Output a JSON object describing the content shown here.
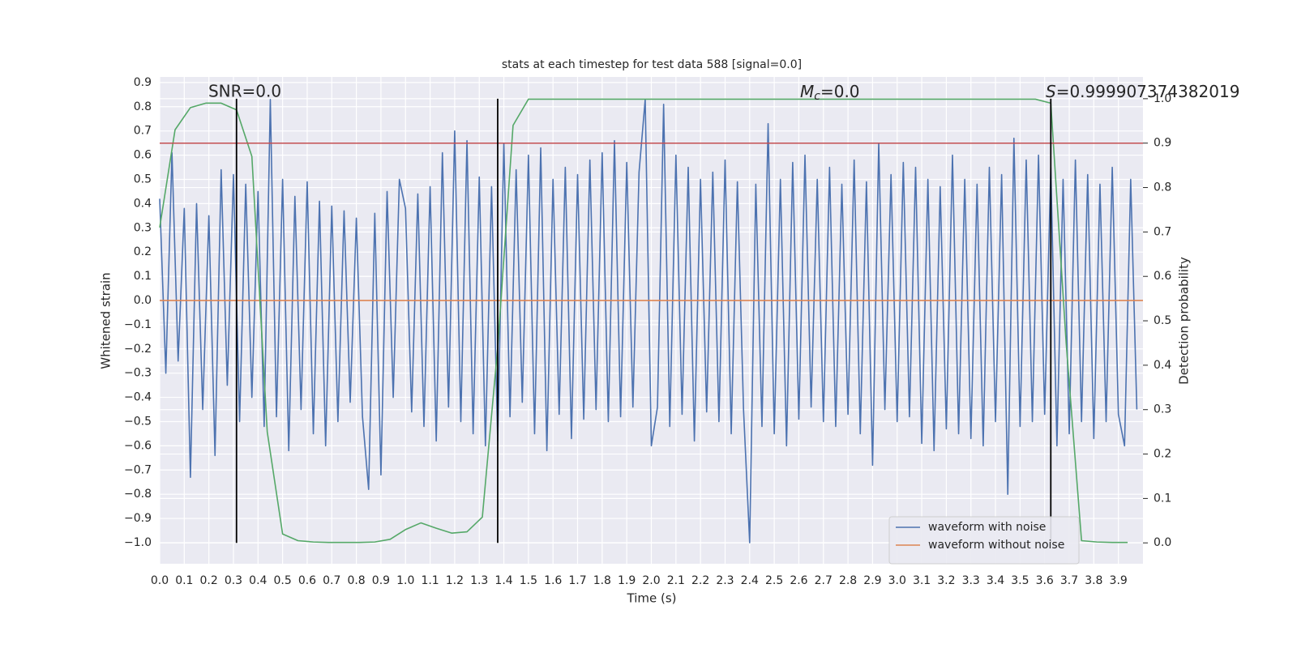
{
  "chart_data": {
    "type": "line",
    "title": "stats at each timestep for test data 588 [signal=0.0]",
    "xlabel": "Time (s)",
    "ylabel": "Whitened strain",
    "y2label": "Detection probability",
    "annotations": [
      {
        "text": "SNR=0.0"
      },
      {
        "symbol": "M",
        "subscript": "c",
        "text": "=0.0"
      },
      {
        "symbol": "S",
        "text": "=0.999907374382019"
      }
    ],
    "grid": true,
    "legend": "lower right",
    "xlim": [
      0,
      4.0
    ],
    "ylim": [
      -1.087,
      0.923
    ],
    "y2lim": [
      -0.047,
      1.049
    ],
    "xticks": [
      {
        "value": 0,
        "label": "0.0"
      },
      {
        "value": 0.1,
        "label": "0.1"
      },
      {
        "value": 0.2,
        "label": "0.2"
      },
      {
        "value": 0.3,
        "label": "0.3"
      },
      {
        "value": 0.4,
        "label": "0.4"
      },
      {
        "value": 0.5,
        "label": "0.5"
      },
      {
        "value": 0.6,
        "label": "0.6"
      },
      {
        "value": 0.7,
        "label": "0.7"
      },
      {
        "value": 0.8,
        "label": "0.8"
      },
      {
        "value": 0.9,
        "label": "0.9"
      },
      {
        "value": 1,
        "label": "1.0"
      },
      {
        "value": 1.1,
        "label": "1.1"
      },
      {
        "value": 1.2,
        "label": "1.2"
      },
      {
        "value": 1.3,
        "label": "1.3"
      },
      {
        "value": 1.4,
        "label": "1.4"
      },
      {
        "value": 1.5,
        "label": "1.5"
      },
      {
        "value": 1.6,
        "label": "1.6"
      },
      {
        "value": 1.7,
        "label": "1.7"
      },
      {
        "value": 1.8,
        "label": "1.8"
      },
      {
        "value": 1.9,
        "label": "1.9"
      },
      {
        "value": 2,
        "label": "2.0"
      },
      {
        "value": 2.1,
        "label": "2.1"
      },
      {
        "value": 2.2,
        "label": "2.2"
      },
      {
        "value": 2.3,
        "label": "2.3"
      },
      {
        "value": 2.4,
        "label": "2.4"
      },
      {
        "value": 2.5,
        "label": "2.5"
      },
      {
        "value": 2.6,
        "label": "2.6"
      },
      {
        "value": 2.7,
        "label": "2.7"
      },
      {
        "value": 2.8,
        "label": "2.8"
      },
      {
        "value": 2.9,
        "label": "2.9"
      },
      {
        "value": 3,
        "label": "3.0"
      },
      {
        "value": 3.1,
        "label": "3.1"
      },
      {
        "value": 3.2,
        "label": "3.2"
      },
      {
        "value": 3.3,
        "label": "3.3"
      },
      {
        "value": 3.4,
        "label": "3.4"
      },
      {
        "value": 3.5,
        "label": "3.5"
      },
      {
        "value": 3.6,
        "label": "3.6"
      },
      {
        "value": 3.7,
        "label": "3.7"
      },
      {
        "value": 3.8,
        "label": "3.8"
      },
      {
        "value": 3.9,
        "label": "3.9"
      }
    ],
    "yticks": [
      {
        "value": -1,
        "label": "−1.0"
      },
      {
        "value": -0.9,
        "label": "−0.9"
      },
      {
        "value": -0.8,
        "label": "−0.8"
      },
      {
        "value": -0.7,
        "label": "−0.7"
      },
      {
        "value": -0.6,
        "label": "−0.6"
      },
      {
        "value": -0.5,
        "label": "−0.5"
      },
      {
        "value": -0.4,
        "label": "−0.4"
      },
      {
        "value": -0.3,
        "label": "−0.3"
      },
      {
        "value": -0.2,
        "label": "−0.2"
      },
      {
        "value": -0.1,
        "label": "−0.1"
      },
      {
        "value": 0,
        "label": "0.0"
      },
      {
        "value": 0.1,
        "label": "0.1"
      },
      {
        "value": 0.2,
        "label": "0.2"
      },
      {
        "value": 0.3,
        "label": "0.3"
      },
      {
        "value": 0.4,
        "label": "0.4"
      },
      {
        "value": 0.5,
        "label": "0.5"
      },
      {
        "value": 0.6,
        "label": "0.6"
      },
      {
        "value": 0.7,
        "label": "0.7"
      },
      {
        "value": 0.8,
        "label": "0.8"
      },
      {
        "value": 0.9,
        "label": "0.9"
      }
    ],
    "y2ticks": [
      {
        "value": 0,
        "label": "0.0"
      },
      {
        "value": 0.1,
        "label": "0.1"
      },
      {
        "value": 0.2,
        "label": "0.2"
      },
      {
        "value": 0.3,
        "label": "0.3"
      },
      {
        "value": 0.4,
        "label": "0.4"
      },
      {
        "value": 0.5,
        "label": "0.5"
      },
      {
        "value": 0.6,
        "label": "0.6"
      },
      {
        "value": 0.7,
        "label": "0.7"
      },
      {
        "value": 0.8,
        "label": "0.8"
      },
      {
        "value": 0.9,
        "label": "0.9"
      },
      {
        "value": 1,
        "label": "1.0"
      }
    ],
    "series": [
      {
        "name": "waveform with noise",
        "color": "#4c72b0",
        "x": [
          0,
          0.025,
          0.05,
          0.075,
          0.1,
          0.125,
          0.15,
          0.175,
          0.2,
          0.225,
          0.25,
          0.275,
          0.3,
          0.325,
          0.35,
          0.375,
          0.4,
          0.425,
          0.45,
          0.475,
          0.5,
          0.525,
          0.55,
          0.575,
          0.6,
          0.625,
          0.65,
          0.675,
          0.7,
          0.725,
          0.75,
          0.775,
          0.8,
          0.825,
          0.85,
          0.875,
          0.9,
          0.925,
          0.95,
          0.975,
          1.0,
          1.025,
          1.05,
          1.075,
          1.1,
          1.125,
          1.15,
          1.175,
          1.2,
          1.225,
          1.25,
          1.275,
          1.3,
          1.325,
          1.35,
          1.375,
          1.4,
          1.425,
          1.45,
          1.475,
          1.5,
          1.525,
          1.55,
          1.575,
          1.6,
          1.625,
          1.65,
          1.675,
          1.7,
          1.725,
          1.75,
          1.775,
          1.8,
          1.825,
          1.85,
          1.875,
          1.9,
          1.925,
          1.95,
          1.975,
          2.0,
          2.025,
          2.05,
          2.075,
          2.1,
          2.125,
          2.15,
          2.175,
          2.2,
          2.225,
          2.25,
          2.275,
          2.3,
          2.325,
          2.35,
          2.375,
          2.4,
          2.425,
          2.45,
          2.475,
          2.5,
          2.525,
          2.55,
          2.575,
          2.6,
          2.625,
          2.65,
          2.675,
          2.7,
          2.725,
          2.75,
          2.775,
          2.8,
          2.825,
          2.85,
          2.875,
          2.9,
          2.925,
          2.95,
          2.975,
          3.0,
          3.025,
          3.05,
          3.075,
          3.1,
          3.125,
          3.15,
          3.175,
          3.2,
          3.225,
          3.25,
          3.275,
          3.3,
          3.325,
          3.35,
          3.375,
          3.4,
          3.425,
          3.45,
          3.475,
          3.5,
          3.525,
          3.55,
          3.575,
          3.6,
          3.625,
          3.65,
          3.675,
          3.7,
          3.725,
          3.75,
          3.775,
          3.8,
          3.825,
          3.85,
          3.875,
          3.9,
          3.925,
          3.95,
          3.975
        ],
        "values": [
          0.42,
          -0.3,
          0.61,
          -0.25,
          0.38,
          -0.73,
          0.4,
          -0.45,
          0.35,
          -0.64,
          0.54,
          -0.35,
          0.52,
          -0.5,
          0.48,
          -0.4,
          0.45,
          -0.52,
          0.83,
          -0.48,
          0.5,
          -0.62,
          0.43,
          -0.45,
          0.49,
          -0.55,
          0.41,
          -0.6,
          0.39,
          -0.5,
          0.37,
          -0.42,
          0.34,
          -0.48,
          -0.78,
          0.36,
          -0.72,
          0.45,
          -0.4,
          0.5,
          0.38,
          -0.46,
          0.44,
          -0.52,
          0.47,
          -0.58,
          0.61,
          -0.44,
          0.7,
          -0.5,
          0.66,
          -0.55,
          0.51,
          -0.6,
          0.47,
          -0.58,
          0.65,
          -0.48,
          0.54,
          -0.42,
          0.6,
          -0.55,
          0.63,
          -0.62,
          0.5,
          -0.47,
          0.55,
          -0.57,
          0.52,
          -0.49,
          0.58,
          -0.45,
          0.61,
          -0.5,
          0.66,
          -0.48,
          0.57,
          -0.44,
          0.53,
          0.83,
          -0.6,
          -0.44,
          0.81,
          -0.52,
          0.6,
          -0.47,
          0.55,
          -0.58,
          0.5,
          -0.46,
          0.53,
          -0.5,
          0.58,
          -0.55,
          0.49,
          -0.45,
          -1.0,
          0.48,
          -0.52,
          0.73,
          -0.55,
          0.5,
          -0.6,
          0.57,
          -0.49,
          0.6,
          -0.44,
          0.5,
          -0.5,
          0.55,
          -0.52,
          0.48,
          -0.47,
          0.58,
          -0.55,
          0.49,
          -0.68,
          0.65,
          -0.45,
          0.52,
          -0.5,
          0.57,
          -0.48,
          0.55,
          -0.59,
          0.5,
          -0.62,
          0.47,
          -0.53,
          0.6,
          -0.55,
          0.5,
          -0.57,
          0.48,
          -0.6,
          0.55,
          -0.5,
          0.52,
          -0.8,
          0.67,
          -0.52,
          0.58,
          -0.5,
          0.6,
          -0.47,
          0.55,
          -0.6,
          0.5,
          -0.55,
          0.58,
          -0.5,
          0.52,
          -0.57,
          0.48,
          -0.5,
          0.55,
          -0.47,
          -0.6,
          0.5,
          -0.45
        ]
      },
      {
        "name": "waveform without noise",
        "color": "#dd8452",
        "x": [
          0,
          4.0
        ],
        "values": [
          0,
          0
        ]
      },
      {
        "color": "#55a868",
        "axis": "y2",
        "x": [
          0,
          0.0625,
          0.125,
          0.1875,
          0.25,
          0.3125,
          0.375,
          0.4375,
          0.5,
          0.5625,
          0.625,
          0.6875,
          0.75,
          0.8125,
          0.875,
          0.9375,
          1,
          1.0625,
          1.125,
          1.1875,
          1.25,
          1.3125,
          1.375,
          1.4375,
          1.5,
          1.5625,
          1.625,
          1.6875,
          1.75,
          1.8125,
          1.875,
          1.9375,
          2,
          2.0625,
          2.125,
          2.1875,
          2.25,
          2.3125,
          2.375,
          2.4375,
          2.5,
          2.5625,
          2.625,
          2.6875,
          2.75,
          2.8125,
          2.875,
          2.9375,
          3,
          3.0625,
          3.125,
          3.1875,
          3.25,
          3.3125,
          3.375,
          3.4375,
          3.5,
          3.5625,
          3.625,
          3.6875,
          3.75,
          3.8125,
          3.875,
          3.9375
        ],
        "values": [
          0.71,
          0.93,
          0.98,
          0.99,
          0.99,
          0.975,
          0.87,
          0.25,
          0.02,
          0.005,
          0.002,
          0.001,
          0.001,
          0.001,
          0.002,
          0.008,
          0.03,
          0.045,
          0.033,
          0.022,
          0.025,
          0.058,
          0.44,
          0.94,
          0.999,
          0.999,
          0.999,
          0.999,
          0.999,
          0.999,
          0.999,
          0.999,
          0.999,
          0.999,
          0.999,
          0.999,
          0.999,
          0.999,
          0.999,
          0.999,
          0.999,
          0.999,
          0.999,
          0.999,
          0.999,
          0.999,
          0.999,
          0.999,
          0.999,
          0.999,
          0.999,
          0.999,
          0.999,
          0.999,
          0.999,
          0.999,
          0.999,
          0.999,
          0.99,
          0.45,
          0.005,
          0.002,
          0.001,
          0.001
        ]
      }
    ],
    "threshold": {
      "value": 0.9,
      "axis": "y2",
      "color": "#c44e52"
    },
    "vlines": {
      "x": [
        0.3125,
        1.375,
        3.625
      ],
      "ymin": 0,
      "ymax": 1,
      "axis": "y2",
      "color": "#000000"
    }
  }
}
